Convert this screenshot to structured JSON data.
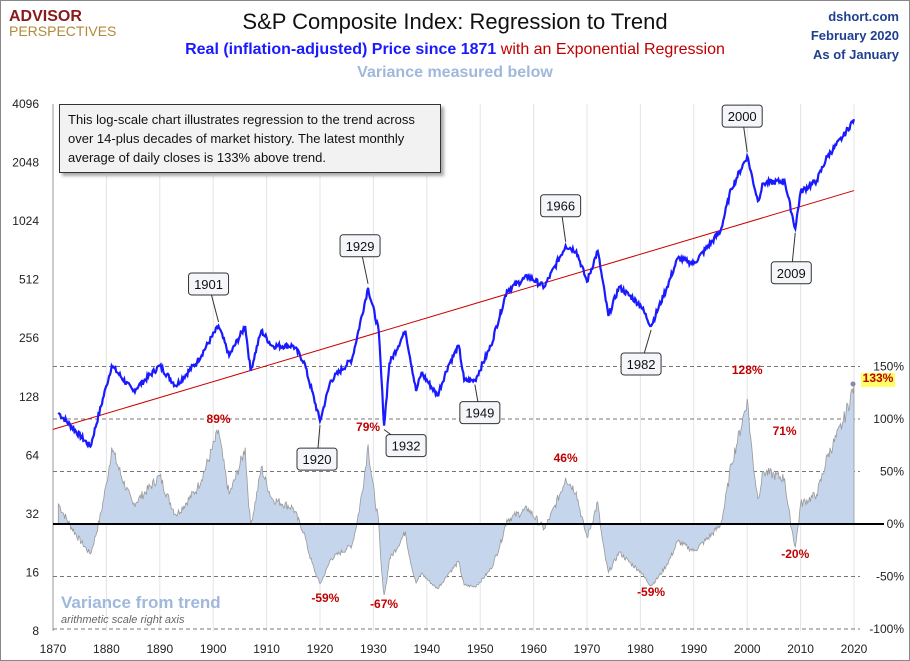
{
  "header": {
    "logo_top": "ADVISOR",
    "logo_bottom": "PERSPECTIVES",
    "title": "S&P Composite Index: Regression to Trend",
    "subtitle_blue": "Real (inflation-adjusted) Price since 1871",
    "subtitle_red": " with an Exponential Regression",
    "variance_note": "Variance measured below",
    "site": "dshort.com",
    "date": "February 2020",
    "as_of": "As of January"
  },
  "note": "This log-scale chart illustrates regression to the trend across over 14-plus decades of market history. The latest monthly average of daily closes is 133% above trend.",
  "colors": {
    "price": "#1a1aff",
    "trend": "#cc0000",
    "variance_fill": "#c5d5ec",
    "variance_line": "#999999",
    "label": "#c00000"
  },
  "chart_data": {
    "type": "line",
    "title": "S&P Composite Index: Regression to Trend",
    "left_axis": {
      "scale": "log2",
      "ticks": [
        "4096",
        "2048",
        "1024",
        "512",
        "256",
        "128",
        "64",
        "32",
        "16",
        "8"
      ],
      "range": [
        8,
        4096
      ]
    },
    "right_axis": {
      "scale": "linear",
      "ticks": [
        "150%",
        "100%",
        "50%",
        "0%",
        "-50%",
        "-100%"
      ],
      "range": [
        -100,
        150
      ]
    },
    "x_ticks": [
      "1870",
      "1880",
      "1890",
      "1900",
      "1910",
      "1920",
      "1930",
      "1940",
      "1950",
      "1960",
      "1970",
      "1980",
      "1990",
      "2000",
      "2010",
      "2020"
    ],
    "xlim": [
      1870,
      2020
    ],
    "trend": {
      "name": "Exponential Regression",
      "start": [
        1870,
        87
      ],
      "end": [
        2020,
        1470
      ]
    },
    "price": {
      "name": "Real Price",
      "points": [
        [
          1871,
          106
        ],
        [
          1877,
          71
        ],
        [
          1880,
          146
        ],
        [
          1881,
          185
        ],
        [
          1885,
          137
        ],
        [
          1890,
          185
        ],
        [
          1893,
          146
        ],
        [
          1897,
          194
        ],
        [
          1901,
          296
        ],
        [
          1903,
          208
        ],
        [
          1906,
          296
        ],
        [
          1907,
          174
        ],
        [
          1909,
          280
        ],
        [
          1911,
          234
        ],
        [
          1915,
          234
        ],
        [
          1917,
          194
        ],
        [
          1920,
          96
        ],
        [
          1922,
          155
        ],
        [
          1926,
          200
        ],
        [
          1929,
          465
        ],
        [
          1931,
          280
        ],
        [
          1932,
          91
        ],
        [
          1933,
          190
        ],
        [
          1936,
          280
        ],
        [
          1938,
          137
        ],
        [
          1939,
          170
        ],
        [
          1942,
          130
        ],
        [
          1944,
          185
        ],
        [
          1946,
          234
        ],
        [
          1947,
          155
        ],
        [
          1949,
          155
        ],
        [
          1952,
          234
        ],
        [
          1955,
          450
        ],
        [
          1959,
          534
        ],
        [
          1962,
          470
        ],
        [
          1966,
          765
        ],
        [
          1968,
          720
        ],
        [
          1970,
          500
        ],
        [
          1972,
          720
        ],
        [
          1974,
          333
        ],
        [
          1976,
          470
        ],
        [
          1980,
          380
        ],
        [
          1982,
          296
        ],
        [
          1985,
          470
        ],
        [
          1987,
          660
        ],
        [
          1990,
          620
        ],
        [
          1995,
          910
        ],
        [
          1997,
          1500
        ],
        [
          2000,
          2210
        ],
        [
          2002,
          1300
        ],
        [
          2003,
          1600
        ],
        [
          2007,
          1650
        ],
        [
          2009,
          935
        ],
        [
          2010,
          1450
        ],
        [
          2013,
          1650
        ],
        [
          2015,
          2200
        ],
        [
          2018,
          2800
        ],
        [
          2020,
          3420
        ]
      ]
    },
    "callouts": [
      {
        "label": "1901",
        "year": 1901
      },
      {
        "label": "1920",
        "year": 1920
      },
      {
        "label": "1929",
        "year": 1929
      },
      {
        "label": "1932",
        "year": 1932
      },
      {
        "label": "1949",
        "year": 1949
      },
      {
        "label": "1966",
        "year": 1966
      },
      {
        "label": "1982",
        "year": 1982
      },
      {
        "label": "2000",
        "year": 2000
      },
      {
        "label": "2009",
        "year": 2009
      }
    ],
    "variance_labels": [
      {
        "text": "89%",
        "year": 1901
      },
      {
        "text": "-59%",
        "year": 1921
      },
      {
        "text": "79%",
        "year": 1929
      },
      {
        "text": "-67%",
        "year": 1932
      },
      {
        "text": "46%",
        "year": 1966
      },
      {
        "text": "-59%",
        "year": 1982
      },
      {
        "text": "128%",
        "year": 2000
      },
      {
        "text": "71%",
        "year": 2007
      },
      {
        "text": "-20%",
        "year": 2009
      },
      {
        "text": "133%",
        "year": 2020
      }
    ],
    "variance_title": "Variance from trend",
    "variance_subtitle": "arithmetic scale right axis"
  }
}
